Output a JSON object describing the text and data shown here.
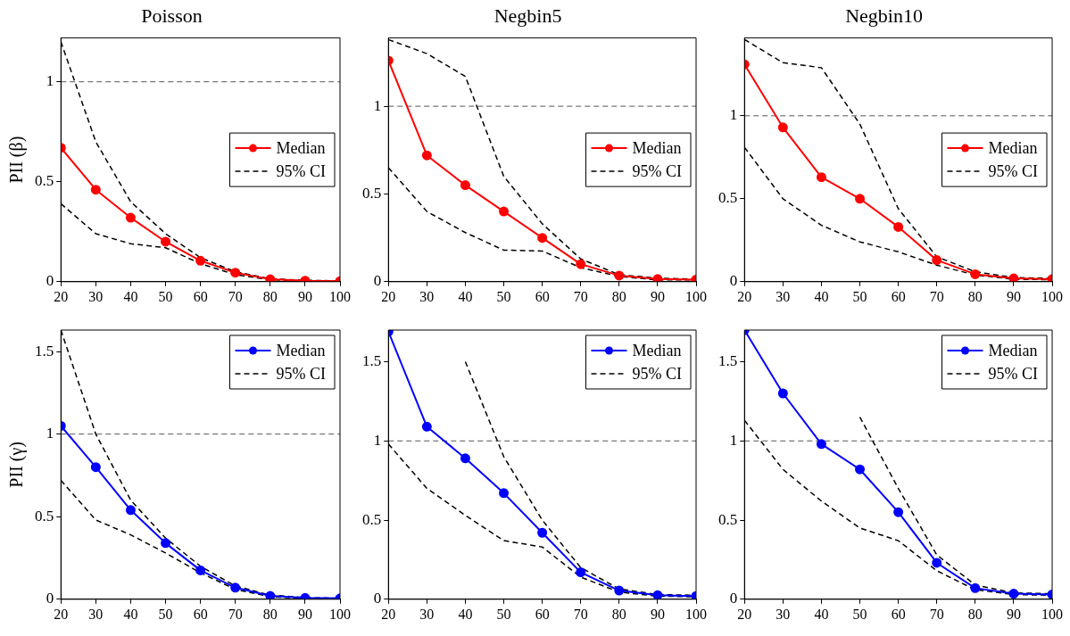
{
  "chart_data": [
    {
      "type": "line",
      "title": "Poisson",
      "ylabel": "PII (β)",
      "x": [
        20,
        30,
        40,
        50,
        60,
        70,
        80,
        90,
        100
      ],
      "xlim": [
        20,
        100
      ],
      "xticks": [
        20,
        30,
        40,
        50,
        60,
        70,
        80,
        90,
        100
      ],
      "ylim": [
        0,
        1.22
      ],
      "yticks": [
        0,
        0.5,
        1
      ],
      "legend": "center right",
      "ref_lines": [
        {
          "axis": "y",
          "value": 1,
          "color": "#555555",
          "line_style": "dashed"
        }
      ],
      "series": [
        {
          "name": "Median",
          "color": "#ff0000",
          "marker": "circle",
          "line_style": "solid",
          "values": [
            0.67,
            0.46,
            0.32,
            0.2,
            0.105,
            0.045,
            0.012,
            0.005,
            0.003
          ]
        },
        {
          "name": "95% CI",
          "color": "#000000",
          "marker": "none",
          "line_style": "dashed",
          "values": [
            1.2,
            0.7,
            0.4,
            0.24,
            0.12,
            0.05,
            0.015,
            0.007,
            0.004
          ]
        },
        {
          "color": "#000000",
          "marker": "none",
          "line_style": "dashed",
          "values": [
            0.39,
            0.24,
            0.19,
            0.17,
            0.09,
            0.035,
            0.01,
            0.004,
            0.002
          ]
        }
      ]
    },
    {
      "type": "line",
      "title": "Negbin5",
      "x": [
        20,
        30,
        40,
        50,
        60,
        70,
        80,
        90,
        100
      ],
      "xlim": [
        20,
        100
      ],
      "xticks": [
        20,
        30,
        40,
        50,
        60,
        70,
        80,
        90,
        100
      ],
      "ylim": [
        0,
        1.39
      ],
      "yticks": [
        0,
        0.5,
        1
      ],
      "legend": "center right",
      "ref_lines": [
        {
          "axis": "y",
          "value": 1,
          "color": "#555555",
          "line_style": "dashed"
        }
      ],
      "series": [
        {
          "name": "Median",
          "color": "#ff0000",
          "marker": "circle",
          "line_style": "solid",
          "values": [
            1.26,
            0.72,
            0.55,
            0.4,
            0.25,
            0.1,
            0.035,
            0.015,
            0.012
          ]
        },
        {
          "name": "95% CI",
          "color": "#000000",
          "marker": "none",
          "line_style": "dashed",
          "values": [
            1.38,
            1.3,
            1.17,
            0.6,
            0.33,
            0.13,
            0.04,
            0.02,
            0.015
          ]
        },
        {
          "color": "#000000",
          "marker": "none",
          "line_style": "dashed",
          "values": [
            0.65,
            0.4,
            0.28,
            0.18,
            0.175,
            0.08,
            0.03,
            0.01,
            0.01
          ]
        }
      ]
    },
    {
      "type": "line",
      "title": "Negbin10",
      "x": [
        20,
        30,
        40,
        50,
        60,
        70,
        80,
        90,
        100
      ],
      "xlim": [
        20,
        100
      ],
      "xticks": [
        20,
        30,
        40,
        50,
        60,
        70,
        80,
        90,
        100
      ],
      "ylim": [
        0,
        1.47
      ],
      "yticks": [
        0,
        0.5,
        1
      ],
      "legend": "center right",
      "ref_lines": [
        {
          "axis": "y",
          "value": 1,
          "color": "#555555",
          "line_style": "dashed"
        }
      ],
      "series": [
        {
          "name": "Median",
          "color": "#ff0000",
          "marker": "circle",
          "line_style": "solid",
          "values": [
            1.31,
            0.93,
            0.63,
            0.5,
            0.33,
            0.13,
            0.045,
            0.02,
            0.015
          ]
        },
        {
          "name": "95% CI",
          "color": "#000000",
          "marker": "none",
          "line_style": "dashed",
          "values": [
            1.46,
            1.32,
            1.29,
            0.95,
            0.44,
            0.15,
            0.06,
            0.025,
            0.02
          ]
        },
        {
          "color": "#000000",
          "marker": "none",
          "line_style": "dashed",
          "values": [
            0.81,
            0.5,
            0.34,
            0.24,
            0.18,
            0.1,
            0.04,
            0.015,
            0.012
          ]
        }
      ]
    },
    {
      "type": "line",
      "ylabel": "PII (γ)",
      "x": [
        20,
        30,
        40,
        50,
        60,
        70,
        80,
        90,
        100
      ],
      "xlim": [
        20,
        100
      ],
      "xticks": [
        20,
        30,
        40,
        50,
        60,
        70,
        80,
        90,
        100
      ],
      "ylim": [
        0,
        1.63
      ],
      "yticks": [
        0,
        0.5,
        1,
        1.5
      ],
      "legend": "top right",
      "ref_lines": [
        {
          "axis": "y",
          "value": 1,
          "color": "#555555",
          "line_style": "dashed"
        }
      ],
      "series": [
        {
          "name": "Median",
          "color": "#0000ff",
          "marker": "circle",
          "line_style": "solid",
          "values": [
            1.05,
            0.8,
            0.54,
            0.34,
            0.175,
            0.07,
            0.02,
            0.008,
            0.005
          ]
        },
        {
          "name": "95% CI",
          "color": "#000000",
          "marker": "none",
          "line_style": "dashed",
          "values": [
            1.63,
            1.0,
            0.6,
            0.37,
            0.2,
            0.08,
            0.025,
            0.01,
            0.006
          ]
        },
        {
          "color": "#000000",
          "marker": "none",
          "line_style": "dashed",
          "values": [
            0.72,
            0.48,
            0.39,
            0.28,
            0.16,
            0.06,
            0.015,
            0.005,
            0.003
          ]
        }
      ]
    },
    {
      "type": "line",
      "x": [
        20,
        30,
        40,
        50,
        60,
        70,
        80,
        90,
        100
      ],
      "xlim": [
        20,
        100
      ],
      "xticks": [
        20,
        30,
        40,
        50,
        60,
        70,
        80,
        90,
        100
      ],
      "ylim": [
        0,
        1.7
      ],
      "yticks": [
        0,
        0.5,
        1,
        1.5
      ],
      "legend": "top right",
      "ref_lines": [
        {
          "axis": "y",
          "value": 1,
          "color": "#555555",
          "line_style": "dashed"
        }
      ],
      "series": [
        {
          "name": "Median",
          "color": "#0000ff",
          "marker": "circle",
          "line_style": "solid",
          "values": [
            1.69,
            1.09,
            0.89,
            0.67,
            0.42,
            0.17,
            0.055,
            0.025,
            0.02
          ]
        },
        {
          "name": "95% CI",
          "color": "#000000",
          "marker": "none",
          "line_style": "dashed",
          "values": [
            null,
            null,
            1.5,
            0.9,
            0.5,
            0.2,
            0.065,
            0.03,
            0.025
          ]
        },
        {
          "color": "#000000",
          "marker": "none",
          "line_style": "dashed",
          "values": [
            0.98,
            0.7,
            0.53,
            0.37,
            0.33,
            0.14,
            0.045,
            0.02,
            0.015
          ]
        }
      ]
    },
    {
      "type": "line",
      "x": [
        20,
        30,
        40,
        50,
        60,
        70,
        80,
        90,
        100
      ],
      "xlim": [
        20,
        100
      ],
      "xticks": [
        20,
        30,
        40,
        50,
        60,
        70,
        80,
        90,
        100
      ],
      "ylim": [
        0,
        1.7
      ],
      "yticks": [
        0,
        0.5,
        1,
        1.5
      ],
      "legend": "top right",
      "ref_lines": [
        {
          "axis": "y",
          "value": 1,
          "color": "#555555",
          "line_style": "dashed"
        }
      ],
      "series": [
        {
          "name": "Median",
          "color": "#0000ff",
          "marker": "circle",
          "line_style": "solid",
          "values": [
            1.7,
            1.3,
            0.98,
            0.82,
            0.55,
            0.23,
            0.07,
            0.035,
            0.03
          ]
        },
        {
          "name": "95% CI",
          "color": "#000000",
          "marker": "none",
          "line_style": "dashed",
          "values": [
            null,
            null,
            null,
            1.15,
            0.7,
            0.28,
            0.09,
            0.04,
            0.035
          ]
        },
        {
          "color": "#000000",
          "marker": "none",
          "line_style": "dashed",
          "values": [
            1.13,
            0.82,
            0.62,
            0.45,
            0.37,
            0.18,
            0.06,
            0.03,
            0.025
          ]
        }
      ]
    }
  ]
}
